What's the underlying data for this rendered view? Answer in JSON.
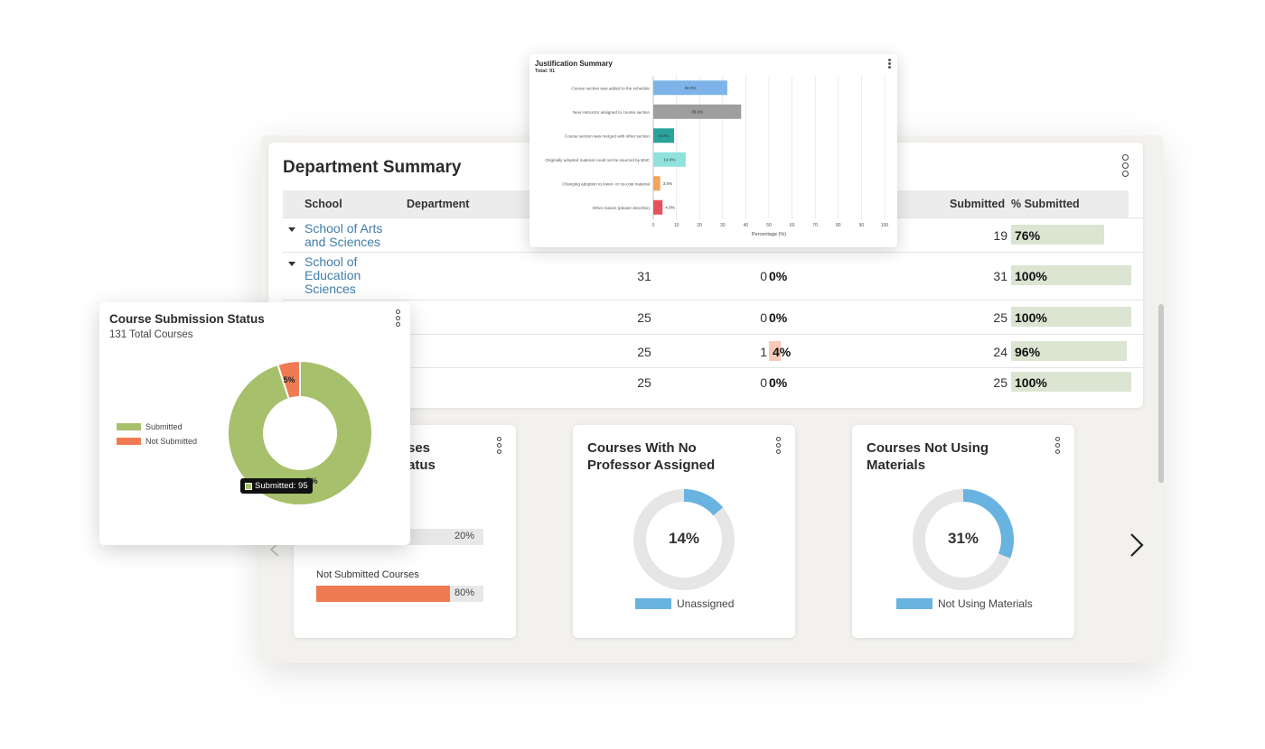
{
  "department_summary": {
    "title": "Department Summary",
    "columns": {
      "school": "School",
      "department": "Department",
      "submitted": "Submitted",
      "pct_submitted": "% Submitted"
    },
    "rows": [
      {
        "school": "School of Arts and Sciences",
        "col_a": "",
        "col_b_num": "",
        "col_b_pct": "",
        "submitted": "19",
        "pct": "76%",
        "pct_value": 76
      },
      {
        "school": "School of Education Sciences",
        "col_a": "31",
        "col_b_num": "0",
        "col_b_pct": "0%",
        "submitted": "31",
        "pct": "100%",
        "pct_value": 100
      },
      {
        "school": "",
        "col_a": "25",
        "col_b_num": "0",
        "col_b_pct": "0%",
        "submitted": "25",
        "pct": "100%",
        "pct_value": 100
      },
      {
        "school": "",
        "col_a": "25",
        "col_b_num": "1",
        "col_b_pct": "4%",
        "submitted": "24",
        "pct": "96%",
        "pct_value": 96
      },
      {
        "school": "",
        "col_a": "25",
        "col_b_num": "0",
        "col_b_pct": "0%",
        "submitted": "25",
        "pct": "100%",
        "pct_value": 100
      }
    ],
    "colors": {
      "submitted_bar": "#dce4d2",
      "not_submitted_bar": "#f8c9b9",
      "link": "#3f7ea8"
    }
  },
  "justification_summary": {
    "title": "Justification Summary",
    "total": "Total: 91"
  },
  "course_submission_status": {
    "title": "Course Submission Status",
    "subtitle": "131 Total Courses",
    "tooltip": "Submitted: 95",
    "slice_labels": {
      "not_submitted": "5%",
      "submitted_partial": "5%"
    }
  },
  "mini_cards": {
    "card1": {
      "title_partial": "ses\natus",
      "bar1_pct": "20%",
      "bar1_value": 20,
      "bar2_label": "Not Submitted Courses",
      "bar2_pct": "80%",
      "bar2_value": 80
    },
    "card2": {
      "title": "Courses With No Professor Assigned",
      "center": "14%",
      "value": 14,
      "legend": "Unassigned"
    },
    "card3": {
      "title": "Courses Not Using Materials",
      "center": "31%",
      "value": 31,
      "legend": "Not Using Materials"
    }
  },
  "chart_data": [
    {
      "type": "bar",
      "orientation": "horizontal",
      "title": "Justification Summary",
      "subtitle": "Total: 91",
      "categories": [
        "Course section was added to the schedule",
        "New instructor assigned to course section",
        "Course section was merged with other section",
        "Originally adopted material could not be sourced by BNC",
        "Changing adoption to lower- or no-cost material",
        "Other reason (please describe)"
      ],
      "values": [
        32.0,
        38.0,
        9.0,
        14.0,
        3.0,
        4.0
      ],
      "data_labels": [
        "32.0%",
        "38.0%",
        "9.0%",
        "14.0%",
        "3.0%",
        "4.0%"
      ],
      "colors": [
        "#7db3e8",
        "#9e9e9e",
        "#2aa39c",
        "#8fe3dc",
        "#f3a35b",
        "#e5525b"
      ],
      "xlabel": "Percentage (%)",
      "xlim": [
        0,
        100
      ],
      "xticks": [
        "0",
        "10",
        "20",
        "30",
        "40",
        "50",
        "60",
        "70",
        "80",
        "90",
        "100"
      ],
      "grid": true
    },
    {
      "type": "pie",
      "variant": "donut",
      "title": "Course Submission Status",
      "subtitle": "131 Total Courses",
      "categories": [
        "Submitted",
        "Not Submitted"
      ],
      "values": [
        95,
        5
      ],
      "colors": [
        "#a7c06c",
        "#f07b52"
      ],
      "legend": "left"
    },
    {
      "type": "pie",
      "variant": "donut",
      "title": "Courses With No Professor Assigned",
      "categories": [
        "Unassigned"
      ],
      "values": [
        14
      ],
      "colors": [
        "#69b3e0",
        "#e6e6e6"
      ]
    },
    {
      "type": "pie",
      "variant": "donut",
      "title": "Courses Not Using Materials",
      "categories": [
        "Not Using Materials"
      ],
      "values": [
        31
      ],
      "colors": [
        "#69b3e0",
        "#e6e6e6"
      ]
    }
  ]
}
